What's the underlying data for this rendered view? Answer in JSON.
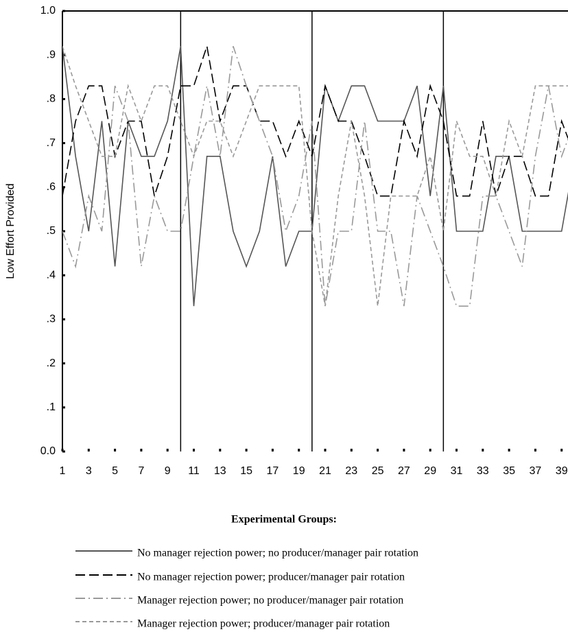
{
  "chart_data": {
    "type": "line",
    "ylabel": "Low Effort Provided",
    "legend_title": "Experimental Groups:",
    "x": [
      1,
      2,
      3,
      4,
      5,
      6,
      7,
      8,
      9,
      10,
      11,
      12,
      13,
      14,
      15,
      16,
      17,
      18,
      19,
      20,
      21,
      22,
      23,
      24,
      25,
      26,
      27,
      28,
      29,
      30,
      31,
      32,
      33,
      34,
      35,
      36,
      37,
      38,
      39,
      40
    ],
    "xlim": [
      1,
      39.6
    ],
    "xticks": [
      1,
      3,
      5,
      7,
      9,
      11,
      13,
      15,
      17,
      19,
      21,
      23,
      25,
      27,
      29,
      31,
      33,
      35,
      37,
      39
    ],
    "ylim": [
      0,
      1
    ],
    "yticks": [
      {
        "value": 0,
        "label": "0.0"
      },
      {
        "value": 0.1,
        "label": ".1"
      },
      {
        "value": 0.2,
        "label": ".2"
      },
      {
        "value": 0.3,
        "label": ".3"
      },
      {
        "value": 0.4,
        "label": ".4"
      },
      {
        "value": 0.5,
        "label": ".5"
      },
      {
        "value": 0.6,
        "label": ".6"
      },
      {
        "value": 0.7,
        "label": ".7"
      },
      {
        "value": 0.8,
        "label": ".8"
      },
      {
        "value": 0.9,
        "label": ".9"
      },
      {
        "value": 1,
        "label": "1.0"
      }
    ],
    "dividers": [
      10,
      20,
      30
    ],
    "series": [
      {
        "name": "No manager rejection power; no producer/manager pair rotation",
        "color": "#555555",
        "dash": "none",
        "values": [
          0.92,
          0.67,
          0.5,
          0.75,
          0.42,
          0.75,
          0.67,
          0.67,
          0.75,
          0.92,
          0.33,
          0.67,
          0.67,
          0.5,
          0.42,
          0.5,
          0.67,
          0.42,
          0.5,
          0.5,
          0.83,
          0.75,
          0.83,
          0.83,
          0.75,
          0.75,
          0.75,
          0.83,
          0.58,
          0.83,
          0.5,
          0.5,
          0.5,
          0.67,
          0.67,
          0.5,
          0.5,
          0.5,
          0.5,
          0.67
        ]
      },
      {
        "name": "No manager rejection power; producer/manager pair rotation",
        "color": "#000000",
        "dash": "14,6",
        "values": [
          0.58,
          0.75,
          0.83,
          0.83,
          0.67,
          0.75,
          0.75,
          0.58,
          0.67,
          0.83,
          0.83,
          0.92,
          0.75,
          0.83,
          0.83,
          0.75,
          0.75,
          0.67,
          0.75,
          0.67,
          0.83,
          0.75,
          0.75,
          0.67,
          0.58,
          0.58,
          0.75,
          0.67,
          0.83,
          0.75,
          0.58,
          0.58,
          0.75,
          0.58,
          0.67,
          0.67,
          0.58,
          0.58,
          0.75,
          0.67
        ]
      },
      {
        "name": "Manager rejection power; no producer/manager pair rotation",
        "color": "#999999",
        "dash": "14,5,2,5",
        "values": [
          0.5,
          0.42,
          0.58,
          0.5,
          0.83,
          0.75,
          0.42,
          0.58,
          0.5,
          0.5,
          0.67,
          0.83,
          0.67,
          0.92,
          0.83,
          0.75,
          0.67,
          0.5,
          0.58,
          0.75,
          0.33,
          0.5,
          0.5,
          0.75,
          0.5,
          0.5,
          0.33,
          0.58,
          0.5,
          0.42,
          0.33,
          0.33,
          0.58,
          0.58,
          0.5,
          0.42,
          0.67,
          0.83,
          0.67,
          0.75
        ]
      },
      {
        "name": "Manager rejection power; producer/manager pair rotation",
        "color": "#999999",
        "dash": "6,4",
        "values": [
          0.92,
          0.83,
          0.75,
          0.67,
          0.67,
          0.83,
          0.75,
          0.83,
          0.83,
          0.75,
          0.67,
          0.75,
          0.75,
          0.67,
          0.75,
          0.83,
          0.83,
          0.83,
          0.83,
          0.5,
          0.33,
          0.58,
          0.75,
          0.58,
          0.33,
          0.58,
          0.58,
          0.58,
          0.67,
          0.5,
          0.75,
          0.67,
          0.67,
          0.58,
          0.75,
          0.67,
          0.83,
          0.83,
          0.83,
          0.83
        ]
      }
    ]
  }
}
